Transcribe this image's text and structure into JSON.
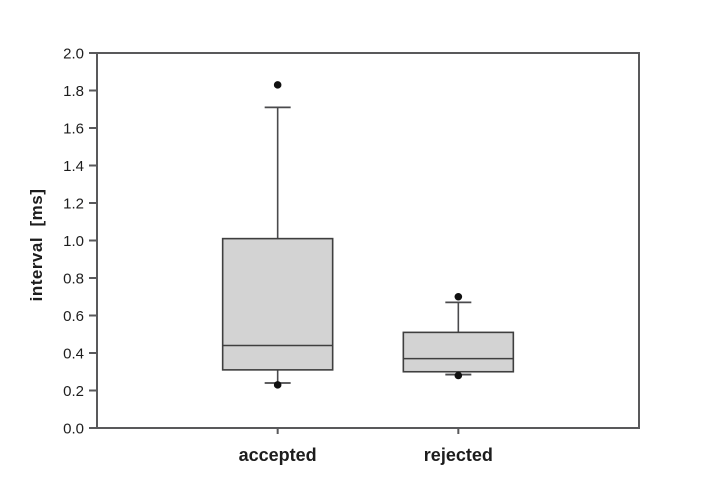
{
  "figure": {
    "background": "#ffffff"
  },
  "chart_data": {
    "type": "boxplot",
    "title": "",
    "xlabel": "",
    "ylabel": "interval  [ms]",
    "ylim": [
      0.0,
      2.0
    ],
    "ytick_step": 0.2,
    "ytick_labels": [
      "0.0",
      "0.2",
      "0.4",
      "0.6",
      "0.8",
      "1.0",
      "1.2",
      "1.4",
      "1.6",
      "1.8",
      "2.0"
    ],
    "grid": false,
    "legend": "none",
    "categories": [
      "accepted",
      "rejected"
    ],
    "boxes": [
      {
        "category": "accepted",
        "whisker_low": 0.24,
        "q1": 0.31,
        "median": 0.44,
        "q3": 1.01,
        "whisker_high": 1.71,
        "outliers": [
          1.83,
          0.23
        ]
      },
      {
        "category": "rejected",
        "whisker_low": 0.285,
        "q1": 0.3,
        "median": 0.37,
        "q3": 0.51,
        "whisker_high": 0.67,
        "outliers": [
          0.7,
          0.28
        ]
      }
    ],
    "colors": {
      "box_fill": "#d3d3d3",
      "box_stroke": "#3f3f3f",
      "axis": "#59595b",
      "whisker": "#4a4a4c",
      "outlier": "#111111",
      "text": "#1d1d1d"
    }
  }
}
